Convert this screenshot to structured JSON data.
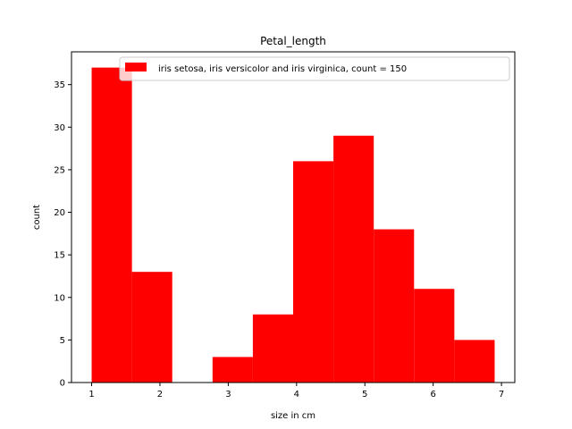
{
  "chart_data": {
    "type": "bar",
    "title": "Petal_length",
    "xlabel": "size in cm",
    "ylabel": "count",
    "bin_edges": [
      1.0,
      1.59,
      2.18,
      2.77,
      3.36,
      3.95,
      4.54,
      5.13,
      5.72,
      6.31,
      6.9
    ],
    "values": [
      37,
      13,
      0,
      3,
      8,
      26,
      29,
      18,
      11,
      5
    ],
    "xlim": [
      0.705,
      7.195
    ],
    "ylim": [
      0,
      38.85
    ],
    "xticks": [
      1,
      2,
      3,
      4,
      5,
      6,
      7
    ],
    "yticks": [
      0,
      5,
      10,
      15,
      20,
      25,
      30,
      35
    ],
    "grid": false,
    "legend_position": "top-right",
    "series": [
      {
        "name": "iris setosa, iris versicolor and iris virginica, count = 150",
        "color": "#ff0000"
      }
    ]
  }
}
